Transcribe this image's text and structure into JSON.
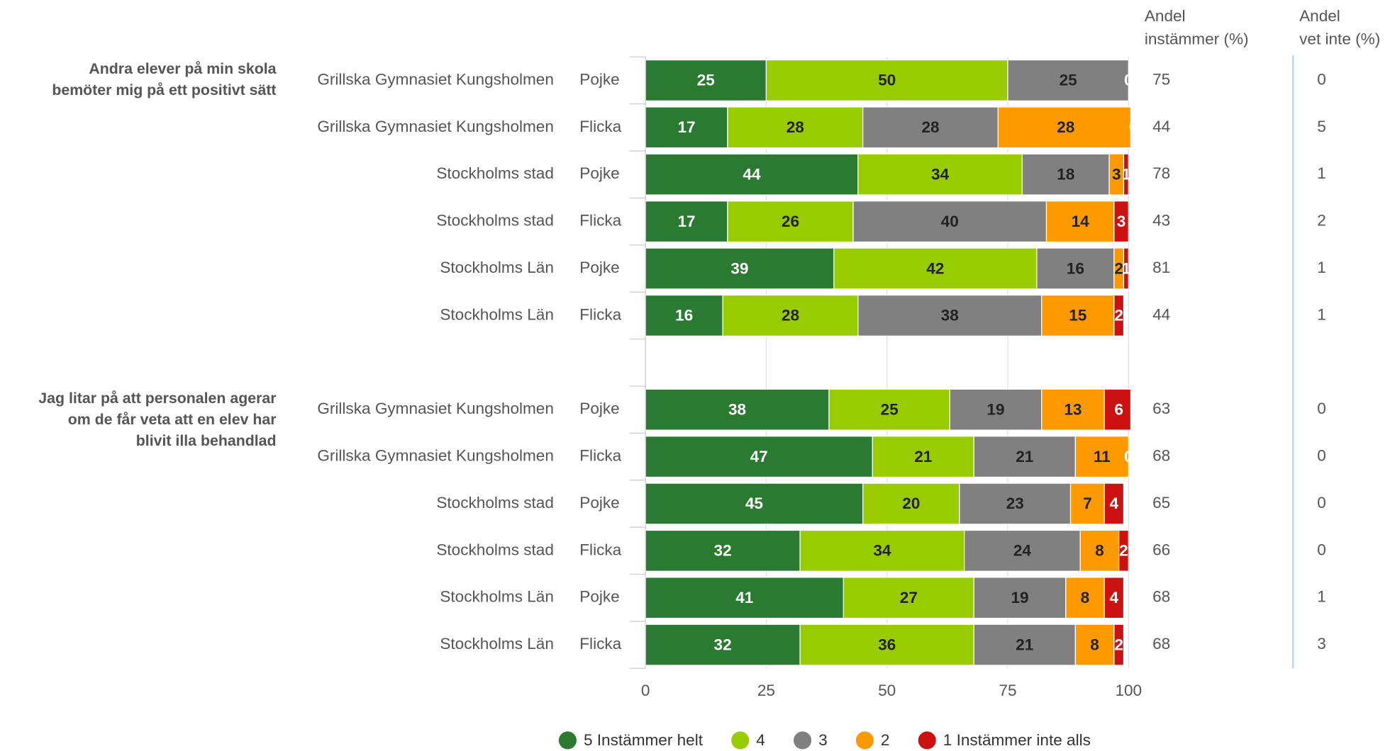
{
  "chart_data": {
    "type": "bar",
    "orientation": "horizontal",
    "stacked": true,
    "groups": [
      {
        "label": [
          "Andra elever på min skola",
          "bemöter mig på ett positivt sätt"
        ]
      },
      {
        "label": [
          "Jag litar på att personalen agerar",
          "om de får veta att en elev har",
          "blivit illa behandlad"
        ]
      }
    ],
    "categories": [
      "Grillska Gymnasiet Kungsholmen",
      "Grillska Gymnasiet Kungsholmen",
      "Stockholms stad",
      "Stockholms stad",
      "Stockholms Län",
      "Stockholms Län",
      "Grillska Gymnasiet Kungsholmen",
      "Grillska Gymnasiet Kungsholmen",
      "Stockholms stad",
      "Stockholms stad",
      "Stockholms Län",
      "Stockholms Län"
    ],
    "genders": [
      "Pojke",
      "Flicka",
      "Pojke",
      "Flicka",
      "Pojke",
      "Flicka",
      "Pojke",
      "Flicka",
      "Pojke",
      "Flicka",
      "Pojke",
      "Flicka"
    ],
    "series": [
      {
        "name": "5 Instämmer helt",
        "color": "#2a7a32",
        "label_color": "#ffffff",
        "values": [
          25,
          17,
          44,
          17,
          39,
          16,
          38,
          47,
          45,
          32,
          41,
          32
        ]
      },
      {
        "name": "4",
        "color": "#99cc00",
        "label_color": "#222222",
        "values": [
          50,
          28,
          34,
          26,
          42,
          28,
          25,
          21,
          20,
          34,
          27,
          36
        ]
      },
      {
        "name": "3",
        "color": "#808080",
        "label_color": "#222222",
        "values": [
          25,
          28,
          18,
          40,
          16,
          38,
          19,
          21,
          23,
          24,
          19,
          21
        ]
      },
      {
        "name": "2",
        "color": "#ff9900",
        "label_color": "#222222",
        "values": [
          0,
          28,
          3,
          14,
          2,
          15,
          13,
          11,
          7,
          8,
          8,
          8
        ]
      },
      {
        "name": "1 Instämmer inte alls",
        "color": "#cc1111",
        "label_color": "#ffffff",
        "values": [
          0,
          0,
          1,
          3,
          1,
          2,
          6,
          0,
          4,
          2,
          4,
          2
        ]
      }
    ],
    "columns": [
      {
        "title": [
          "Andel",
          "instämmer (%)"
        ],
        "values": [
          75,
          44,
          78,
          43,
          81,
          44,
          63,
          68,
          65,
          66,
          68,
          68
        ]
      },
      {
        "title": [
          "Andel",
          "vet inte (%)"
        ],
        "values": [
          0,
          5,
          1,
          2,
          1,
          1,
          0,
          0,
          0,
          0,
          1,
          3
        ]
      }
    ],
    "xlim": [
      0,
      100
    ],
    "xticks": [
      0,
      25,
      50,
      75,
      100
    ],
    "grid": true,
    "legend": "bottom"
  }
}
